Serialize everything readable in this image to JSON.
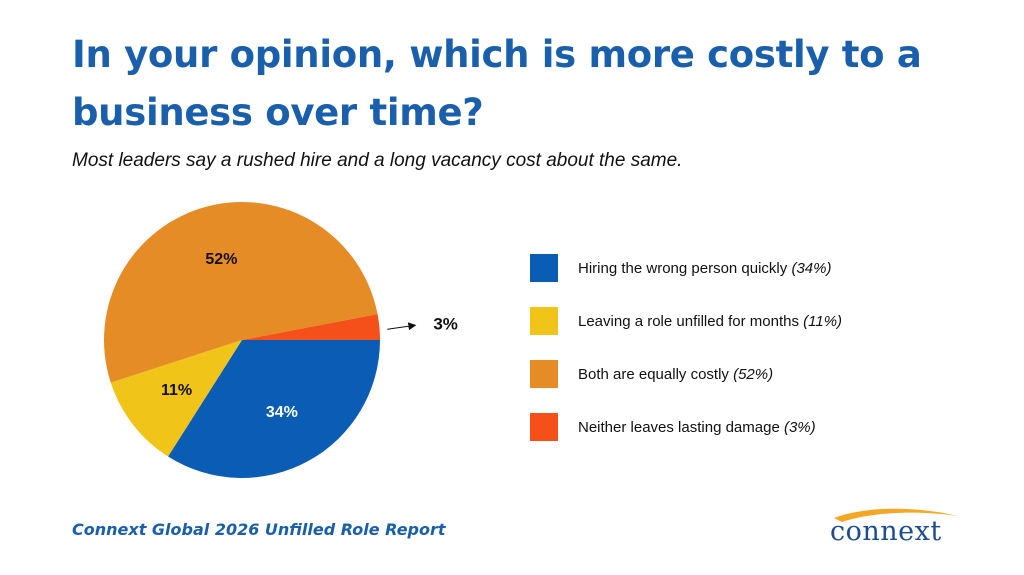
{
  "title": "In your opinion, which is more costly to a business over time?",
  "subtitle": "Most leaders say a rushed hire and a long vacancy cost about the same.",
  "footer": "Connext Global 2026 Unfilled Role Report",
  "logo": {
    "text": "connext",
    "colors": {
      "text": "#1a4d8f",
      "swoosh": "#f5a623"
    }
  },
  "chart_data": {
    "type": "pie",
    "title": "",
    "slices": [
      {
        "name": "Hiring the wrong person quickly",
        "value": 34,
        "label": "34%",
        "legend_pct": "(34%)",
        "color": "#0b5cb5"
      },
      {
        "name": "Leaving a role unfilled for months",
        "value": 11,
        "label": "11%",
        "legend_pct": "(11%)",
        "color": "#f0c419"
      },
      {
        "name": "Both are equally costly",
        "value": 52,
        "label": "52%",
        "legend_pct": "(52%)",
        "color": "#e68c26"
      },
      {
        "name": "Neither leaves lasting damage",
        "value": 3,
        "label": "3%",
        "legend_pct": "(3%)",
        "color": "#f5501a"
      }
    ],
    "legend_position": "right"
  }
}
